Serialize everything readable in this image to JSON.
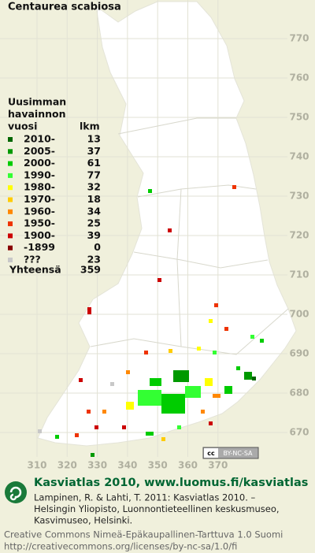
{
  "title": "Centaurea scabiosa",
  "legend": {
    "heading": [
      "Uusimman",
      "havainnon",
      "vuosi"
    ],
    "count_heading": "lkm",
    "entries": [
      {
        "label": "2010-",
        "count": 13,
        "color": "#006600"
      },
      {
        "label": "2005-",
        "count": 37,
        "color": "#009900"
      },
      {
        "label": "2000-",
        "count": 61,
        "color": "#00cc00"
      },
      {
        "label": "1990-",
        "count": 77,
        "color": "#33ff33"
      },
      {
        "label": "1980-",
        "count": 32,
        "color": "#ffff00"
      },
      {
        "label": "1970-",
        "count": 18,
        "color": "#ffcc00"
      },
      {
        "label": "1960-",
        "count": 34,
        "color": "#ff8800"
      },
      {
        "label": "1950-",
        "count": 25,
        "color": "#ee3300"
      },
      {
        "label": "1900-",
        "count": 39,
        "color": "#cc0000"
      },
      {
        "label": "-1899",
        "count": 0,
        "color": "#880000"
      },
      {
        "label": "???",
        "count": 23,
        "color": "#c8c8c8"
      }
    ],
    "total_label": "Yhteensä",
    "total": 359
  },
  "grid": {
    "x_labels": [
      310,
      320,
      330,
      340,
      350,
      360,
      370
    ],
    "y_labels": [
      670,
      680,
      690,
      700,
      710,
      720,
      730,
      740,
      750,
      760,
      770
    ]
  },
  "badge": "BY-NC-SA",
  "footer": {
    "logo_text": "Kasviatlas 2010, www.luomus.fi/kasviatlas",
    "citation": [
      "Lampinen, R. & Lahti, T. 2011: Kasviatlas 2010. –",
      "Helsingin Yliopisto, Luonnontieteellinen keskusmuseo,",
      "Kasvimuseo, Helsinki."
    ],
    "license": [
      "Creative Commons Nimeä-Epäkaupallinen-Tarttuva 1.0 Suomi",
      "http://creativecommons.org/licenses/by-nc-sa/1.0/fi"
    ]
  }
}
